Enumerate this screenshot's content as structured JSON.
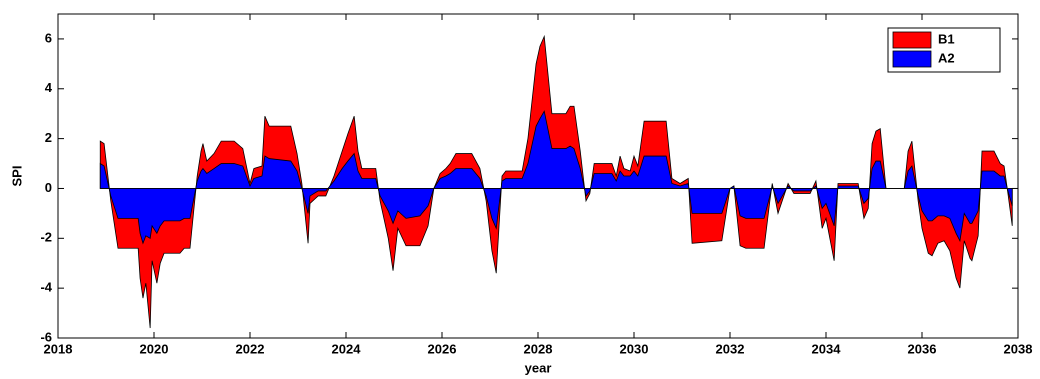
{
  "chart_data": {
    "type": "area",
    "xlabel": "year",
    "ylabel": "SPI",
    "xlim": [
      2018,
      2038
    ],
    "ylim": [
      -6,
      7
    ],
    "xticks": [
      2018,
      2020,
      2022,
      2024,
      2026,
      2028,
      2030,
      2032,
      2034,
      2036,
      2038
    ],
    "yticks": [
      -6,
      -4,
      -2,
      0,
      2,
      4,
      6
    ],
    "grid": false,
    "legend": "upper right",
    "x": [
      2018.88,
      2018.96,
      2019.1,
      2019.25,
      2019.67,
      2019.71,
      2019.77,
      2019.83,
      2019.92,
      2019.96,
      2020.06,
      2020.13,
      2020.21,
      2020.54,
      2020.63,
      2020.75,
      2020.9,
      2020.98,
      2021.02,
      2021.1,
      2021.25,
      2021.4,
      2021.67,
      2021.85,
      2022.0,
      2022.08,
      2022.25,
      2022.31,
      2022.4,
      2022.85,
      2022.98,
      2023.08,
      2023.21,
      2023.25,
      2023.42,
      2023.58,
      2023.75,
      2023.92,
      2024.04,
      2024.17,
      2024.25,
      2024.33,
      2024.62,
      2024.71,
      2024.88,
      2024.98,
      2025.08,
      2025.25,
      2025.54,
      2025.71,
      2025.83,
      2025.96,
      2026.08,
      2026.17,
      2026.29,
      2026.62,
      2026.79,
      2026.92,
      2027.04,
      2027.13,
      2027.25,
      2027.33,
      2027.67,
      2027.79,
      2027.96,
      2028.04,
      2028.13,
      2028.29,
      2028.58,
      2028.67,
      2028.75,
      2028.88,
      2029.0,
      2029.08,
      2029.17,
      2029.54,
      2029.63,
      2029.71,
      2029.79,
      2029.92,
      2030.0,
      2030.08,
      2030.21,
      2030.67,
      2030.79,
      2030.96,
      2031.13,
      2031.21,
      2031.83,
      2032.0,
      2032.08,
      2032.21,
      2032.33,
      2032.71,
      2032.83,
      2032.88,
      2033.0,
      2033.21,
      2033.33,
      2033.67,
      2033.79,
      2033.92,
      2034.0,
      2034.17,
      2034.25,
      2034.67,
      2034.79,
      2034.88,
      2034.96,
      2035.04,
      2035.13,
      2035.25,
      2035.63,
      2035.71,
      2035.79,
      2035.92,
      2036.0,
      2036.13,
      2036.21,
      2036.33,
      2036.46,
      2036.58,
      2036.71,
      2036.79,
      2036.88,
      2037.0,
      2037.04,
      2037.17,
      2037.25,
      2037.5,
      2037.63,
      2037.71,
      2037.79,
      2037.88
    ],
    "series": [
      {
        "name": "B1",
        "color": "#ff0000",
        "values": [
          1.9,
          1.8,
          -0.5,
          -2.4,
          -2.4,
          -3.6,
          -4.4,
          -3.8,
          -5.6,
          -2.9,
          -3.8,
          -3.0,
          -2.6,
          -2.6,
          -2.4,
          -2.4,
          0.5,
          1.5,
          1.8,
          1.1,
          1.4,
          1.9,
          1.9,
          1.6,
          0.2,
          0.8,
          0.9,
          2.9,
          2.5,
          2.5,
          1.4,
          0.2,
          -2.2,
          -0.6,
          -0.3,
          -0.3,
          0.5,
          1.5,
          2.2,
          2.9,
          1.5,
          0.8,
          0.8,
          -0.5,
          -2.0,
          -3.3,
          -1.6,
          -2.3,
          -2.3,
          -1.5,
          0.0,
          0.6,
          0.8,
          1.0,
          1.4,
          1.4,
          0.8,
          -0.5,
          -2.5,
          -3.4,
          0.5,
          0.7,
          0.7,
          2.0,
          5.0,
          5.7,
          6.1,
          3.0,
          3.0,
          3.3,
          3.3,
          1.5,
          -0.5,
          -0.2,
          1.0,
          1.0,
          0.5,
          1.3,
          0.8,
          0.7,
          1.3,
          0.9,
          2.7,
          2.7,
          0.4,
          0.2,
          0.4,
          -2.2,
          -2.1,
          0.0,
          0.1,
          -2.3,
          -2.4,
          -2.4,
          -0.5,
          0.2,
          -1.0,
          0.2,
          -0.2,
          -0.2,
          0.3,
          -1.6,
          -1.2,
          -2.9,
          0.2,
          0.2,
          -1.2,
          -0.8,
          1.8,
          2.3,
          2.4,
          0.0,
          0.0,
          1.5,
          1.9,
          -0.5,
          -1.6,
          -2.6,
          -2.7,
          -2.2,
          -2.1,
          -2.5,
          -3.6,
          -4.0,
          -2.1,
          -2.8,
          -2.9,
          -1.9,
          1.5,
          1.5,
          1.0,
          0.9,
          -0.2,
          -1.5
        ]
      },
      {
        "name": "A2",
        "color": "#0000ff",
        "values": [
          1.0,
          0.9,
          -0.3,
          -1.2,
          -1.2,
          -1.8,
          -2.2,
          -1.9,
          -2.0,
          -1.5,
          -1.8,
          -1.5,
          -1.3,
          -1.3,
          -1.2,
          -1.2,
          0.3,
          0.7,
          0.8,
          0.6,
          0.8,
          1.0,
          1.0,
          0.9,
          0.1,
          0.4,
          0.5,
          1.3,
          1.2,
          1.1,
          0.7,
          0.0,
          -1.0,
          -0.3,
          -0.1,
          -0.1,
          0.3,
          0.8,
          1.1,
          1.4,
          0.7,
          0.4,
          0.4,
          -0.3,
          -0.9,
          -1.4,
          -0.9,
          -1.2,
          -1.1,
          -0.7,
          0.0,
          0.4,
          0.5,
          0.6,
          0.8,
          0.8,
          0.4,
          -0.3,
          -1.2,
          -1.6,
          0.3,
          0.4,
          0.4,
          1.0,
          2.5,
          2.8,
          3.1,
          1.6,
          1.6,
          1.7,
          1.6,
          0.8,
          -0.3,
          -0.1,
          0.6,
          0.6,
          0.3,
          0.7,
          0.5,
          0.5,
          0.7,
          0.5,
          1.3,
          1.3,
          0.2,
          0.1,
          0.2,
          -1.0,
          -1.0,
          0.0,
          0.1,
          -1.1,
          -1.2,
          -1.2,
          -0.3,
          0.1,
          -0.6,
          0.1,
          -0.1,
          -0.1,
          0.1,
          -0.8,
          -0.6,
          -1.5,
          0.1,
          0.1,
          -0.6,
          -0.4,
          0.8,
          1.1,
          1.1,
          0.0,
          0.0,
          0.7,
          0.9,
          -0.3,
          -0.9,
          -1.3,
          -1.3,
          -1.1,
          -1.1,
          -1.2,
          -1.8,
          -2.1,
          -1.0,
          -1.4,
          -1.4,
          -0.9,
          0.7,
          0.7,
          0.5,
          0.5,
          -0.1,
          -0.7
        ]
      }
    ]
  }
}
